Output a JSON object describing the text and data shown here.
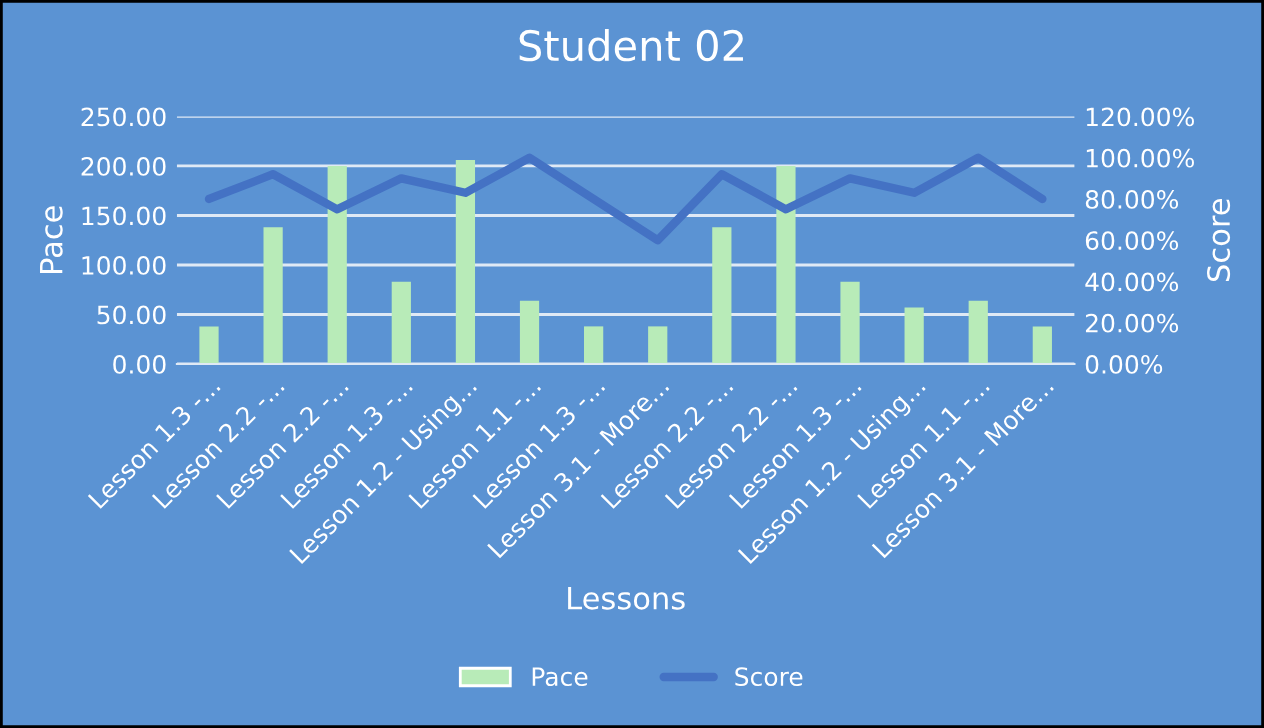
{
  "chart_data": {
    "type": "bar",
    "title": "Student 02",
    "xlabel": "Lessons",
    "ylabel": "Pace",
    "y2label": "Score",
    "categories": [
      "Lesson 1.3 -...",
      "Lesson 2.2 -...",
      "Lesson 2.2 -...",
      "Lesson 1.3 -...",
      "Lesson 1.2 - Using...",
      "Lesson 1.1 -...",
      "Lesson 1.3 -...",
      "Lesson 3.1 - More...",
      "Lesson 2.2 -...",
      "Lesson 2.2 -...",
      "Lesson 1.3 -...",
      "Lesson 1.2 - Using...",
      "Lesson 1.1 -...",
      "Lesson 3.1 - More..."
    ],
    "series": [
      {
        "name": "Pace",
        "color": "#b8ebb8",
        "values": [
          38,
          138,
          200,
          83,
          206,
          64,
          38,
          38,
          138,
          200,
          83,
          57,
          64,
          38
        ]
      },
      {
        "name": "Score",
        "type": "line",
        "axis": "y2",
        "color": "#4472c4",
        "values": [
          0.8,
          0.92,
          0.75,
          0.9,
          0.83,
          1.0,
          0.8,
          0.6,
          0.92,
          0.75,
          0.9,
          0.83,
          1.0,
          0.8
        ]
      }
    ],
    "ylim": [
      0,
      250
    ],
    "yticks": [
      {
        "value": 0,
        "label": "0.00"
      },
      {
        "value": 50,
        "label": "50.00"
      },
      {
        "value": 100,
        "label": "100.00"
      },
      {
        "value": 150,
        "label": "150.00"
      },
      {
        "value": 200,
        "label": "200.00"
      },
      {
        "value": 250,
        "label": "250.00"
      }
    ],
    "y2lim": [
      0,
      1.2
    ],
    "y2ticks": [
      {
        "value": 0,
        "label": "0.00%"
      },
      {
        "value": 0.2,
        "label": "20.00%"
      },
      {
        "value": 0.4,
        "label": "40.00%"
      },
      {
        "value": 0.6,
        "label": "60.00%"
      },
      {
        "value": 0.8,
        "label": "80.00%"
      },
      {
        "value": 1.0,
        "label": "100.00%"
      },
      {
        "value": 1.2,
        "label": "120.00%"
      }
    ],
    "grid": "y",
    "legend": "bottom",
    "marker": "none"
  }
}
